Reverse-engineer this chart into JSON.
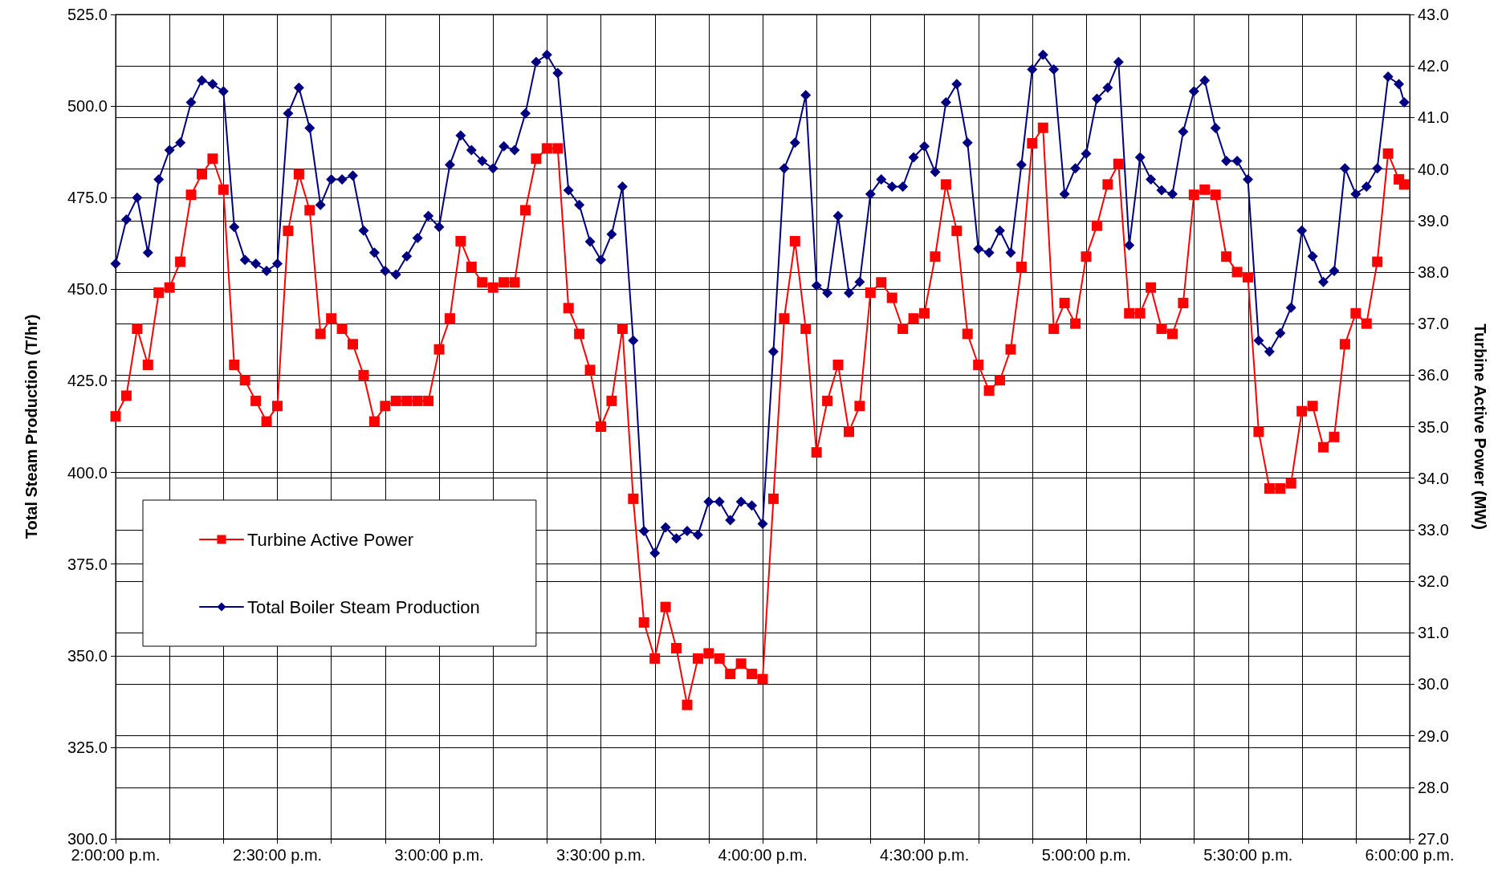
{
  "chart_data": {
    "type": "line",
    "xlabel": null,
    "ylabel": "Total Steam Production (T/hr)",
    "y2label": "Turbine Active Power (MW)",
    "x": [
      14,
      14.0333,
      14.0667,
      14.1,
      14.1333,
      14.1667,
      14.2,
      14.2333,
      14.2667,
      14.3,
      14.3333,
      14.3667,
      14.4,
      14.4333,
      14.4667,
      14.5,
      14.5333,
      14.5667,
      14.6,
      14.6333,
      14.6667,
      14.7,
      14.7333,
      14.7667,
      14.8,
      14.8333,
      14.8667,
      14.9,
      14.9333,
      14.9667,
      15,
      15.0333,
      15.0667,
      15.1,
      15.1333,
      15.1667,
      15.2,
      15.2333,
      15.2667,
      15.3,
      15.3333,
      15.3667,
      15.4,
      15.4333,
      15.4667,
      15.5,
      15.5333,
      15.5667,
      15.6,
      15.6333,
      15.6667,
      15.7,
      15.7333,
      15.7667,
      15.8,
      15.8333,
      15.8667,
      15.9,
      15.9333,
      15.9667,
      16,
      16.0333,
      16.0667,
      16.1,
      16.1333,
      16.1667,
      16.2,
      16.2333,
      16.2667,
      16.3,
      16.3333,
      16.3667,
      16.4,
      16.4333,
      16.4667,
      16.5,
      16.5333,
      16.5667,
      16.6,
      16.6333,
      16.6667,
      16.7,
      16.7333,
      16.7667,
      16.8,
      16.8333,
      16.8667,
      16.9,
      16.9333,
      16.9667,
      17,
      17.0333,
      17.0667,
      17.1,
      17.1333,
      17.1667,
      17.2,
      17.2333,
      17.2667,
      17.3,
      17.3333,
      17.3667,
      17.4,
      17.4333,
      17.4667,
      17.5,
      17.5333,
      17.5667,
      17.6,
      17.6333,
      17.6667,
      17.7,
      17.7333,
      17.7667,
      17.8,
      17.8333,
      17.8667,
      17.9,
      17.9333,
      17.9667,
      17.9833
    ],
    "series": [
      {
        "name": "Turbine Active Power",
        "color": "#ff0000",
        "axis": "y2",
        "marker": "square",
        "values": [
          35.2,
          35.6,
          36.9,
          36.2,
          37.6,
          37.7,
          38.2,
          39.5,
          39.9,
          40.2,
          39.6,
          36.2,
          35.9,
          35.5,
          35.1,
          35.4,
          38.8,
          39.9,
          39.2,
          36.8,
          37.1,
          36.9,
          36.6,
          36.0,
          35.1,
          35.4,
          35.5,
          35.5,
          35.5,
          35.5,
          36.5,
          37.1,
          38.6,
          38.1,
          37.8,
          37.7,
          37.8,
          37.8,
          39.2,
          40.2,
          40.4,
          40.4,
          37.3,
          36.8,
          36.1,
          35.0,
          35.5,
          36.9,
          33.6,
          31.2,
          30.5,
          31.5,
          30.7,
          29.6,
          30.5,
          30.6,
          30.5,
          30.2,
          30.4,
          30.2,
          30.1,
          33.6,
          37.1,
          38.6,
          36.9,
          34.5,
          35.5,
          36.2,
          34.9,
          35.4,
          37.6,
          37.8,
          37.5,
          36.9,
          37.1,
          37.2,
          38.3,
          39.7,
          38.8,
          36.8,
          36.2,
          35.7,
          35.9,
          36.5,
          38.1,
          40.5,
          40.8,
          36.9,
          37.4,
          37.0,
          38.3,
          38.9,
          39.7,
          40.1,
          37.2,
          37.2,
          37.7,
          36.9,
          36.8,
          37.4,
          39.5,
          39.6,
          39.5,
          38.3,
          38.0,
          37.9,
          34.9,
          33.8,
          33.8,
          33.9,
          35.3,
          35.4,
          34.6,
          34.8,
          36.6,
          37.2,
          37.0,
          38.2,
          40.3,
          39.8,
          39.7
        ]
      },
      {
        "name": "Total Boiler Steam Production",
        "color": "#000080",
        "marker": "diamond",
        "values": [
          457,
          469,
          475,
          460,
          480,
          488,
          490,
          501,
          507,
          506,
          504,
          467,
          458,
          457,
          455,
          457,
          498,
          505,
          494,
          473,
          480,
          480,
          481,
          466,
          460,
          455,
          454,
          459,
          464,
          470,
          467,
          484,
          492,
          488,
          485,
          483,
          489,
          488,
          498,
          512,
          514,
          509,
          477,
          473,
          463,
          458,
          465,
          478,
          436,
          384,
          378,
          385,
          382,
          384,
          383,
          392,
          392,
          387,
          392,
          391,
          386,
          433,
          483,
          490,
          503,
          451,
          449,
          470,
          449,
          452,
          476,
          480,
          478,
          478,
          486,
          489,
          482,
          501,
          506,
          490,
          461,
          460,
          466,
          460,
          484,
          510,
          514,
          510,
          476,
          483,
          487,
          502,
          505,
          512,
          462,
          486,
          480,
          477,
          476,
          493,
          504,
          507,
          494,
          485,
          485,
          480,
          436,
          433,
          438,
          445,
          466,
          459,
          452,
          455,
          483,
          476,
          478,
          483,
          508,
          506,
          501
        ]
      }
    ],
    "xlim": [
      14,
      18
    ],
    "xticks": [
      {
        "value": 14,
        "label": "2:00:00 p.m."
      },
      {
        "value": 14.1667,
        "label": null
      },
      {
        "value": 14.3333,
        "label": null
      },
      {
        "value": 14.5,
        "label": "2:30:00 p.m."
      },
      {
        "value": 14.6667,
        "label": null
      },
      {
        "value": 14.8333,
        "label": null
      },
      {
        "value": 15,
        "label": "3:00:00 p.m."
      },
      {
        "value": 15.1667,
        "label": null
      },
      {
        "value": 15.3333,
        "label": null
      },
      {
        "value": 15.5,
        "label": "3:30:00 p.m."
      },
      {
        "value": 15.6667,
        "label": null
      },
      {
        "value": 15.8333,
        "label": null
      },
      {
        "value": 16,
        "label": "4:00:00 p.m."
      },
      {
        "value": 16.1667,
        "label": null
      },
      {
        "value": 16.3333,
        "label": null
      },
      {
        "value": 16.5,
        "label": "4:30:00 p.m."
      },
      {
        "value": 16.6667,
        "label": null
      },
      {
        "value": 16.8333,
        "label": null
      },
      {
        "value": 17,
        "label": "5:00:00 p.m."
      },
      {
        "value": 17.1667,
        "label": null
      },
      {
        "value": 17.3333,
        "label": null
      },
      {
        "value": 17.5,
        "label": "5:30:00 p.m."
      },
      {
        "value": 17.6667,
        "label": null
      },
      {
        "value": 17.8333,
        "label": null
      },
      {
        "value": 18,
        "label": "6:00:00 p.m."
      }
    ],
    "ylim": [
      300,
      525
    ],
    "yticks": [
      {
        "value": 300,
        "label": "300.0"
      },
      {
        "value": 325,
        "label": "325.0"
      },
      {
        "value": 350,
        "label": "350.0"
      },
      {
        "value": 375,
        "label": "375.0"
      },
      {
        "value": 400,
        "label": "400.0"
      },
      {
        "value": 425,
        "label": "425.0"
      },
      {
        "value": 450,
        "label": "450.0"
      },
      {
        "value": 475,
        "label": "475.0"
      },
      {
        "value": 500,
        "label": "500.0"
      },
      {
        "value": 525,
        "label": "525.0"
      }
    ],
    "y2lim": [
      27,
      43
    ],
    "y2ticks": [
      {
        "value": 27,
        "label": "27.0"
      },
      {
        "value": 28,
        "label": "28.0"
      },
      {
        "value": 29,
        "label": "29.0"
      },
      {
        "value": 30,
        "label": "30.0"
      },
      {
        "value": 31,
        "label": "31.0"
      },
      {
        "value": 32,
        "label": "32.0"
      },
      {
        "value": 33,
        "label": "33.0"
      },
      {
        "value": 34,
        "label": "34.0"
      },
      {
        "value": 35,
        "label": "35.0"
      },
      {
        "value": 36,
        "label": "36.0"
      },
      {
        "value": 37,
        "label": "37.0"
      },
      {
        "value": 38,
        "label": "38.0"
      },
      {
        "value": 39,
        "label": "39.0"
      },
      {
        "value": 40,
        "label": "40.0"
      },
      {
        "value": 41,
        "label": "41.0"
      },
      {
        "value": 42,
        "label": "42.0"
      },
      {
        "value": 43,
        "label": "43.0"
      }
    ],
    "grid": true,
    "legend": "bottom left",
    "line_style": "solid"
  }
}
